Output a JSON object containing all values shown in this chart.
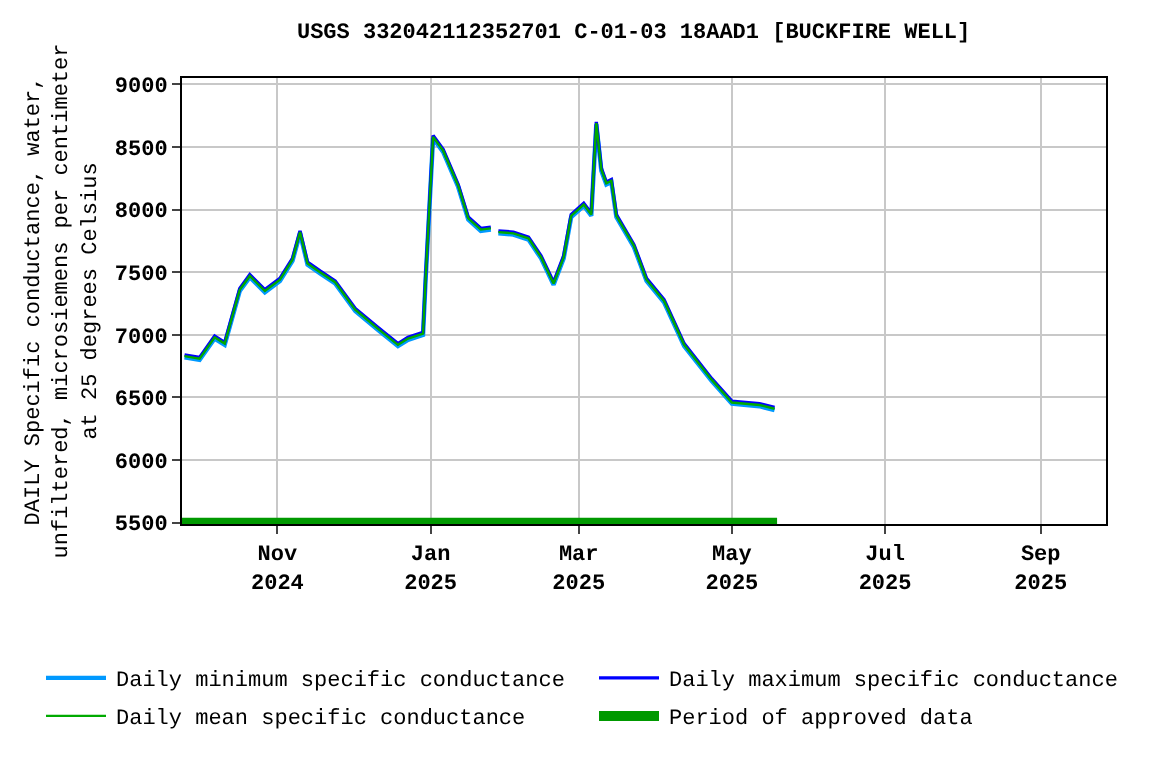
{
  "chart_data": {
    "type": "line",
    "title": "USGS 332042112352701 C-01-03 18AAD1 [BUCKFIRE WELL]",
    "ylabel": "DAILY Specific conductance, water,\nunfiltered, microsiemens per centimeter\nat 25 degrees Celsius",
    "x": [
      "2024-09-25",
      "2024-10-01",
      "2024-10-07",
      "2024-10-11",
      "2024-10-17",
      "2024-10-21",
      "2024-10-27",
      "2024-11-02",
      "2024-11-07",
      "2024-11-10",
      "2024-11-13",
      "2024-11-18",
      "2024-11-24",
      "2024-12-02",
      "2024-12-11",
      "2024-12-19",
      "2024-12-23",
      "2024-12-29",
      "2024-12-30",
      "2025-01-02",
      "2025-01-06",
      "2025-01-12",
      "2025-01-16",
      "2025-01-21",
      "2025-01-25",
      "2025-01-27",
      "2025-01-28",
      "2025-02-03",
      "2025-02-09",
      "2025-02-14",
      "2025-02-19",
      "2025-02-23",
      "2025-02-26",
      "2025-03-03",
      "2025-03-06",
      "2025-03-08",
      "2025-03-10",
      "2025-03-12",
      "2025-03-14",
      "2025-03-16",
      "2025-03-23",
      "2025-03-28",
      "2025-04-04",
      "2025-04-12",
      "2025-04-23",
      "2025-05-01",
      "2025-05-12",
      "2025-05-18"
    ],
    "series": [
      {
        "name": "Daily minimum specific conductance",
        "color": "#0099ff",
        "values": [
          6820,
          6800,
          6970,
          6920,
          7350,
          7460,
          7340,
          7430,
          7590,
          7810,
          7560,
          7490,
          7410,
          7190,
          7040,
          6910,
          6960,
          7000,
          7430,
          8570,
          8460,
          8180,
          7920,
          7830,
          7840,
          null,
          7810,
          7800,
          7760,
          7610,
          7400,
          7610,
          7940,
          8030,
          7950,
          8680,
          8310,
          8200,
          8220,
          7940,
          7700,
          7430,
          7260,
          6910,
          6630,
          6450,
          6430,
          6400
        ]
      },
      {
        "name": "Daily maximum specific conductance",
        "color": "#0000ff",
        "values": [
          6840,
          6820,
          6990,
          6940,
          7370,
          7480,
          7360,
          7450,
          7610,
          7830,
          7580,
          7510,
          7430,
          7210,
          7060,
          6930,
          6980,
          7020,
          7450,
          8590,
          8480,
          8200,
          7940,
          7850,
          7860,
          null,
          7830,
          7820,
          7780,
          7630,
          7420,
          7630,
          7960,
          8050,
          7970,
          8700,
          8330,
          8220,
          8240,
          7960,
          7720,
          7450,
          7280,
          6930,
          6650,
          6470,
          6450,
          6420
        ]
      },
      {
        "name": "Daily mean specific conductance",
        "color": "#00aa00",
        "values": [
          6830,
          6810,
          6980,
          6930,
          7360,
          7470,
          7350,
          7440,
          7600,
          7820,
          7570,
          7500,
          7420,
          7200,
          7050,
          6920,
          6970,
          7010,
          7440,
          8580,
          8470,
          8190,
          7930,
          7840,
          7850,
          null,
          7820,
          7810,
          7770,
          7620,
          7410,
          7620,
          7950,
          8040,
          7960,
          8690,
          8320,
          8210,
          8230,
          7950,
          7710,
          7440,
          7270,
          6920,
          6640,
          6460,
          6440,
          6410
        ]
      },
      {
        "name": "Period of approved data",
        "color": "#009900",
        "x": [
          "2024-09-24",
          "2025-05-19"
        ],
        "values": [
          5500,
          5500
        ]
      }
    ],
    "xlim": [
      "2024-09-24",
      "2025-09-27"
    ],
    "xticks": [
      {
        "value": "2024-11-01",
        "label": "Nov\n2024"
      },
      {
        "value": "2025-01-01",
        "label": "Jan\n2025"
      },
      {
        "value": "2025-03-01",
        "label": "Mar\n2025"
      },
      {
        "value": "2025-05-01",
        "label": "May\n2025"
      },
      {
        "value": "2025-07-01",
        "label": "Jul\n2025"
      },
      {
        "value": "2025-09-01",
        "label": "Sep\n2025"
      }
    ],
    "ylim": [
      5490,
      9050
    ],
    "yticks": [
      5500,
      6000,
      6500,
      7000,
      7500,
      8000,
      8500,
      9000
    ],
    "grid": true,
    "legend": "bottom",
    "marker": "none",
    "line_style": "solid"
  }
}
